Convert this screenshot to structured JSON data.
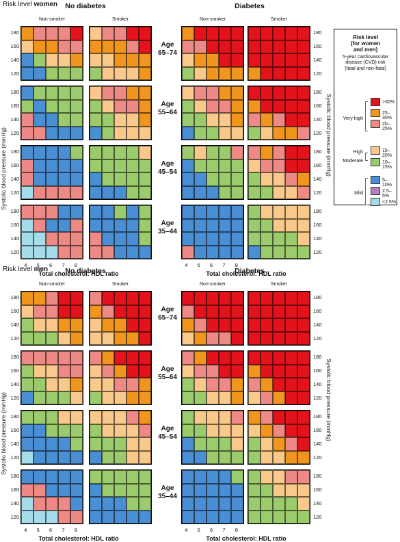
{
  "sections": [
    {
      "key": "women",
      "title_prefix": "Risk level ",
      "title_bold": "women",
      "headers": {
        "no_diabetes": "No diabetes",
        "diabetes": "Diabetes"
      },
      "subheaders": {
        "non_smoker": "Non-smoker",
        "smoker": "Smoker"
      },
      "ages": [
        "Age\n65–74",
        "Age\n55–64",
        "Age\n45–54",
        "Age\n35–44"
      ],
      "grids": {
        "nd_ns": [
          [
            "O",
            "P",
            "P",
            "P",
            "R"
          ],
          [
            "T",
            "O",
            "O",
            "P",
            "P"
          ],
          [
            "B",
            "G",
            "T",
            "T",
            "O"
          ],
          [
            "B",
            "B",
            "G",
            "G",
            "G"
          ],
          [
            "B",
            "G",
            "G",
            "G",
            "G"
          ],
          [
            "G",
            "B",
            "G",
            "G",
            "G"
          ],
          [
            "P",
            "B",
            "B",
            "G",
            "G"
          ],
          [
            "P",
            "P",
            "B",
            "B",
            "B"
          ],
          [
            "B",
            "B",
            "B",
            "B",
            "G"
          ],
          [
            "P",
            "B",
            "B",
            "B",
            "B"
          ],
          [
            "P",
            "B",
            "B",
            "B",
            "B"
          ],
          [
            "C",
            "P",
            "P",
            "P",
            "P"
          ],
          [
            "P",
            "P",
            "P",
            "B",
            "B"
          ],
          [
            "C",
            "P",
            "B",
            "B",
            "P"
          ],
          [
            "C",
            "C",
            "P",
            "P",
            "P"
          ],
          [
            "C",
            "C",
            "C",
            "P",
            "P"
          ]
        ],
        "nd_s": [
          [
            "T",
            "P",
            "P",
            "R",
            "R"
          ],
          [
            "O",
            "O",
            "O",
            "P",
            "R"
          ],
          [
            "T",
            "T",
            "O",
            "O",
            "O"
          ],
          [
            "G",
            "T",
            "T",
            "T",
            "O"
          ],
          [
            "T",
            "P",
            "P",
            "O",
            "O"
          ],
          [
            "G",
            "T",
            "P",
            "P",
            "O"
          ],
          [
            "G",
            "G",
            "T",
            "T",
            "O"
          ],
          [
            "B",
            "G",
            "T",
            "T",
            "T"
          ],
          [
            "G",
            "G",
            "G",
            "G",
            "T"
          ],
          [
            "G",
            "G",
            "G",
            "G",
            "G"
          ],
          [
            "B",
            "G",
            "G",
            "G",
            "G"
          ],
          [
            "B",
            "B",
            "B",
            "G",
            "G"
          ],
          [
            "B",
            "B",
            "G",
            "B",
            "G"
          ],
          [
            "B",
            "B",
            "B",
            "B",
            "G"
          ],
          [
            "P",
            "B",
            "B",
            "B",
            "G"
          ],
          [
            "P",
            "P",
            "B",
            "B",
            "B"
          ]
        ],
        "d_ns": [
          [
            "O",
            "R",
            "R",
            "R",
            "R"
          ],
          [
            "P",
            "P",
            "R",
            "R",
            "R"
          ],
          [
            "T",
            "O",
            "O",
            "R",
            "R"
          ],
          [
            "G",
            "T",
            "O",
            "O",
            "O"
          ],
          [
            "T",
            "P",
            "P",
            "O",
            "O"
          ],
          [
            "G",
            "T",
            "P",
            "P",
            "O"
          ],
          [
            "G",
            "G",
            "T",
            "T",
            "O"
          ],
          [
            "B",
            "G",
            "G",
            "T",
            "T"
          ],
          [
            "G",
            "T",
            "G",
            "G",
            "P"
          ],
          [
            "B",
            "G",
            "G",
            "G",
            "G"
          ],
          [
            "B",
            "B",
            "G",
            "G",
            "G"
          ],
          [
            "B",
            "B",
            "B",
            "G",
            "G"
          ],
          [
            "B",
            "B",
            "B",
            "B",
            "B"
          ],
          [
            "B",
            "B",
            "B",
            "B",
            "B"
          ],
          [
            "B",
            "B",
            "B",
            "B",
            "B"
          ],
          [
            "P",
            "B",
            "B",
            "B",
            "B"
          ]
        ],
        "d_s": [
          [
            "R",
            "R",
            "R",
            "R",
            "R"
          ],
          [
            "R",
            "R",
            "R",
            "R",
            "R"
          ],
          [
            "R",
            "R",
            "R",
            "R",
            "R"
          ],
          [
            "O",
            "R",
            "R",
            "R",
            "R"
          ],
          [
            "R",
            "R",
            "R",
            "R",
            "R"
          ],
          [
            "O",
            "R",
            "R",
            "R",
            "R"
          ],
          [
            "P",
            "O",
            "P",
            "R",
            "R"
          ],
          [
            "G",
            "T",
            "O",
            "O",
            "P"
          ],
          [
            "P",
            "O",
            "P",
            "R",
            "R"
          ],
          [
            "T",
            "P",
            "P",
            "R",
            "R"
          ],
          [
            "G",
            "T",
            "T",
            "P",
            "O"
          ],
          [
            "G",
            "G",
            "T",
            "T",
            "P"
          ],
          [
            "G",
            "T",
            "T",
            "T",
            "T"
          ],
          [
            "G",
            "G",
            "T",
            "T",
            "T"
          ],
          [
            "G",
            "G",
            "G",
            "G",
            "T"
          ],
          [
            "B",
            "G",
            "G",
            "G",
            "G"
          ]
        ]
      },
      "x_ticks": [
        "4",
        "5",
        "6",
        "7",
        "8"
      ],
      "y_ticks": [
        "180",
        "160",
        "140",
        "120"
      ],
      "x_axis": "Total cholesterol: HDL ratio",
      "y_axis": "Systolic blood pressure (mmHg)"
    },
    {
      "key": "men",
      "title_prefix": "Risk level ",
      "title_bold": "men",
      "headers": {
        "no_diabetes": "No diabetes",
        "diabetes": "Diabetes"
      },
      "subheaders": {
        "non_smoker": "Non-smoker",
        "smoker": "Smoker"
      },
      "ages": [
        "Age\n65–74",
        "Age\n55–64",
        "Age\n45–54",
        "Age\n35–44"
      ],
      "grids": {
        "nd_ns": [
          [
            "O",
            "O",
            "P",
            "R",
            "R"
          ],
          [
            "T",
            "P",
            "P",
            "R",
            "R"
          ],
          [
            "G",
            "T",
            "T",
            "O",
            "O"
          ],
          [
            "G",
            "G",
            "G",
            "T",
            "O"
          ],
          [
            "P",
            "P",
            "P",
            "P",
            "P"
          ],
          [
            "G",
            "T",
            "T",
            "P",
            "P"
          ],
          [
            "G",
            "G",
            "T",
            "T",
            "O"
          ],
          [
            "B",
            "G",
            "G",
            "G",
            "T"
          ],
          [
            "G",
            "G",
            "G",
            "T",
            "T"
          ],
          [
            "B",
            "B",
            "G",
            "G",
            "G"
          ],
          [
            "B",
            "B",
            "B",
            "B",
            "G"
          ],
          [
            "C",
            "B",
            "B",
            "B",
            "B"
          ],
          [
            "B",
            "B",
            "B",
            "B",
            "B"
          ],
          [
            "P",
            "P",
            "B",
            "B",
            "B"
          ],
          [
            "C",
            "P",
            "P",
            "P",
            "B"
          ],
          [
            "C",
            "C",
            "C",
            "P",
            "P"
          ]
        ],
        "nd_s": [
          [
            "P",
            "R",
            "R",
            "R",
            "R"
          ],
          [
            "O",
            "P",
            "R",
            "R",
            "R"
          ],
          [
            "T",
            "O",
            "O",
            "R",
            "R"
          ],
          [
            "T",
            "T",
            "O",
            "O",
            "R"
          ],
          [
            "P",
            "O",
            "R",
            "R",
            "R"
          ],
          [
            "T",
            "P",
            "O",
            "R",
            "R"
          ],
          [
            "T",
            "T",
            "P",
            "P",
            "O"
          ],
          [
            "G",
            "T",
            "T",
            "O",
            "O"
          ],
          [
            "T",
            "T",
            "T",
            "P",
            "O"
          ],
          [
            "G",
            "T",
            "T",
            "T",
            "P"
          ],
          [
            "G",
            "G",
            "G",
            "T",
            "T"
          ],
          [
            "B",
            "G",
            "G",
            "T",
            "T"
          ],
          [
            "G",
            "G",
            "G",
            "G",
            "G"
          ],
          [
            "B",
            "G",
            "G",
            "G",
            "G"
          ],
          [
            "B",
            "B",
            "B",
            "G",
            "G"
          ],
          [
            "B",
            "B",
            "B",
            "B",
            "B"
          ]
        ],
        "d_ns": [
          [
            "R",
            "R",
            "R",
            "R",
            "R"
          ],
          [
            "P",
            "R",
            "R",
            "R",
            "R"
          ],
          [
            "O",
            "P",
            "R",
            "R",
            "R"
          ],
          [
            "T",
            "O",
            "P",
            "P",
            "R"
          ],
          [
            "P",
            "O",
            "R",
            "R",
            "R"
          ],
          [
            "T",
            "P",
            "P",
            "R",
            "R"
          ],
          [
            "G",
            "T",
            "P",
            "P",
            "O"
          ],
          [
            "G",
            "G",
            "T",
            "T",
            "O"
          ],
          [
            "G",
            "T",
            "T",
            "T",
            "P"
          ],
          [
            "G",
            "G",
            "T",
            "T",
            "T"
          ],
          [
            "B",
            "G",
            "G",
            "G",
            "T"
          ],
          [
            "B",
            "B",
            "G",
            "G",
            "G"
          ],
          [
            "B",
            "B",
            "B",
            "B",
            "G"
          ],
          [
            "B",
            "B",
            "B",
            "B",
            "B"
          ],
          [
            "B",
            "B",
            "B",
            "B",
            "B"
          ],
          [
            "B",
            "B",
            "B",
            "B",
            "B"
          ]
        ],
        "d_s": [
          [
            "R",
            "R",
            "R",
            "R",
            "R"
          ],
          [
            "R",
            "R",
            "R",
            "R",
            "R"
          ],
          [
            "R",
            "R",
            "R",
            "R",
            "R"
          ],
          [
            "R",
            "R",
            "R",
            "R",
            "R"
          ],
          [
            "R",
            "R",
            "R",
            "R",
            "R"
          ],
          [
            "O",
            "R",
            "R",
            "R",
            "R"
          ],
          [
            "P",
            "O",
            "R",
            "R",
            "R"
          ],
          [
            "T",
            "P",
            "O",
            "R",
            "R"
          ],
          [
            "O",
            "P",
            "R",
            "R",
            "R"
          ],
          [
            "T",
            "O",
            "P",
            "R",
            "R"
          ],
          [
            "G",
            "T",
            "O",
            "P",
            "R"
          ],
          [
            "G",
            "T",
            "T",
            "O",
            "O"
          ],
          [
            "G",
            "T",
            "T",
            "P",
            "P"
          ],
          [
            "G",
            "G",
            "T",
            "T",
            "T"
          ],
          [
            "G",
            "G",
            "G",
            "G",
            "T"
          ],
          [
            "G",
            "G",
            "G",
            "G",
            "G"
          ]
        ]
      },
      "x_ticks": [
        "4",
        "5",
        "6",
        "7",
        "8"
      ],
      "y_ticks": [
        "180",
        "160",
        "140",
        "120"
      ],
      "x_axis": "Total cholesterol: HDL ratio",
      "y_axis": "Systolic blood pressure (mmHg)"
    }
  ],
  "colors": {
    "R": "#e4131b",
    "O": "#f0961e",
    "P": "#ee8a85",
    "T": "#f9c98b",
    "G": "#9bcb6c",
    "B": "#4a8fd4",
    "M": "#b57fc2",
    "C": "#a5dcea"
  },
  "legend": {
    "title": "Risk level\n(for women\nand men)",
    "subtitle": "5-year cardiovascular\ndisease (CVD) risk\n(fatal and non-fatal)",
    "items": [
      {
        "code": "R",
        "label": ">30%"
      },
      {
        "code": "O",
        "label": "25–30%"
      },
      {
        "code": "P",
        "label": "20–25%"
      },
      {
        "code": "T",
        "label": "15–20%"
      },
      {
        "code": "G",
        "label": "10–15%"
      },
      {
        "code": "B",
        "label": "5–10%"
      },
      {
        "code": "M",
        "label": "2.5–5%"
      },
      {
        "code": "C",
        "label": "<2.5%"
      }
    ],
    "groups": {
      "very_high": "Very high",
      "high": "High",
      "moderate": "Moderate",
      "mild": "Mild"
    }
  }
}
